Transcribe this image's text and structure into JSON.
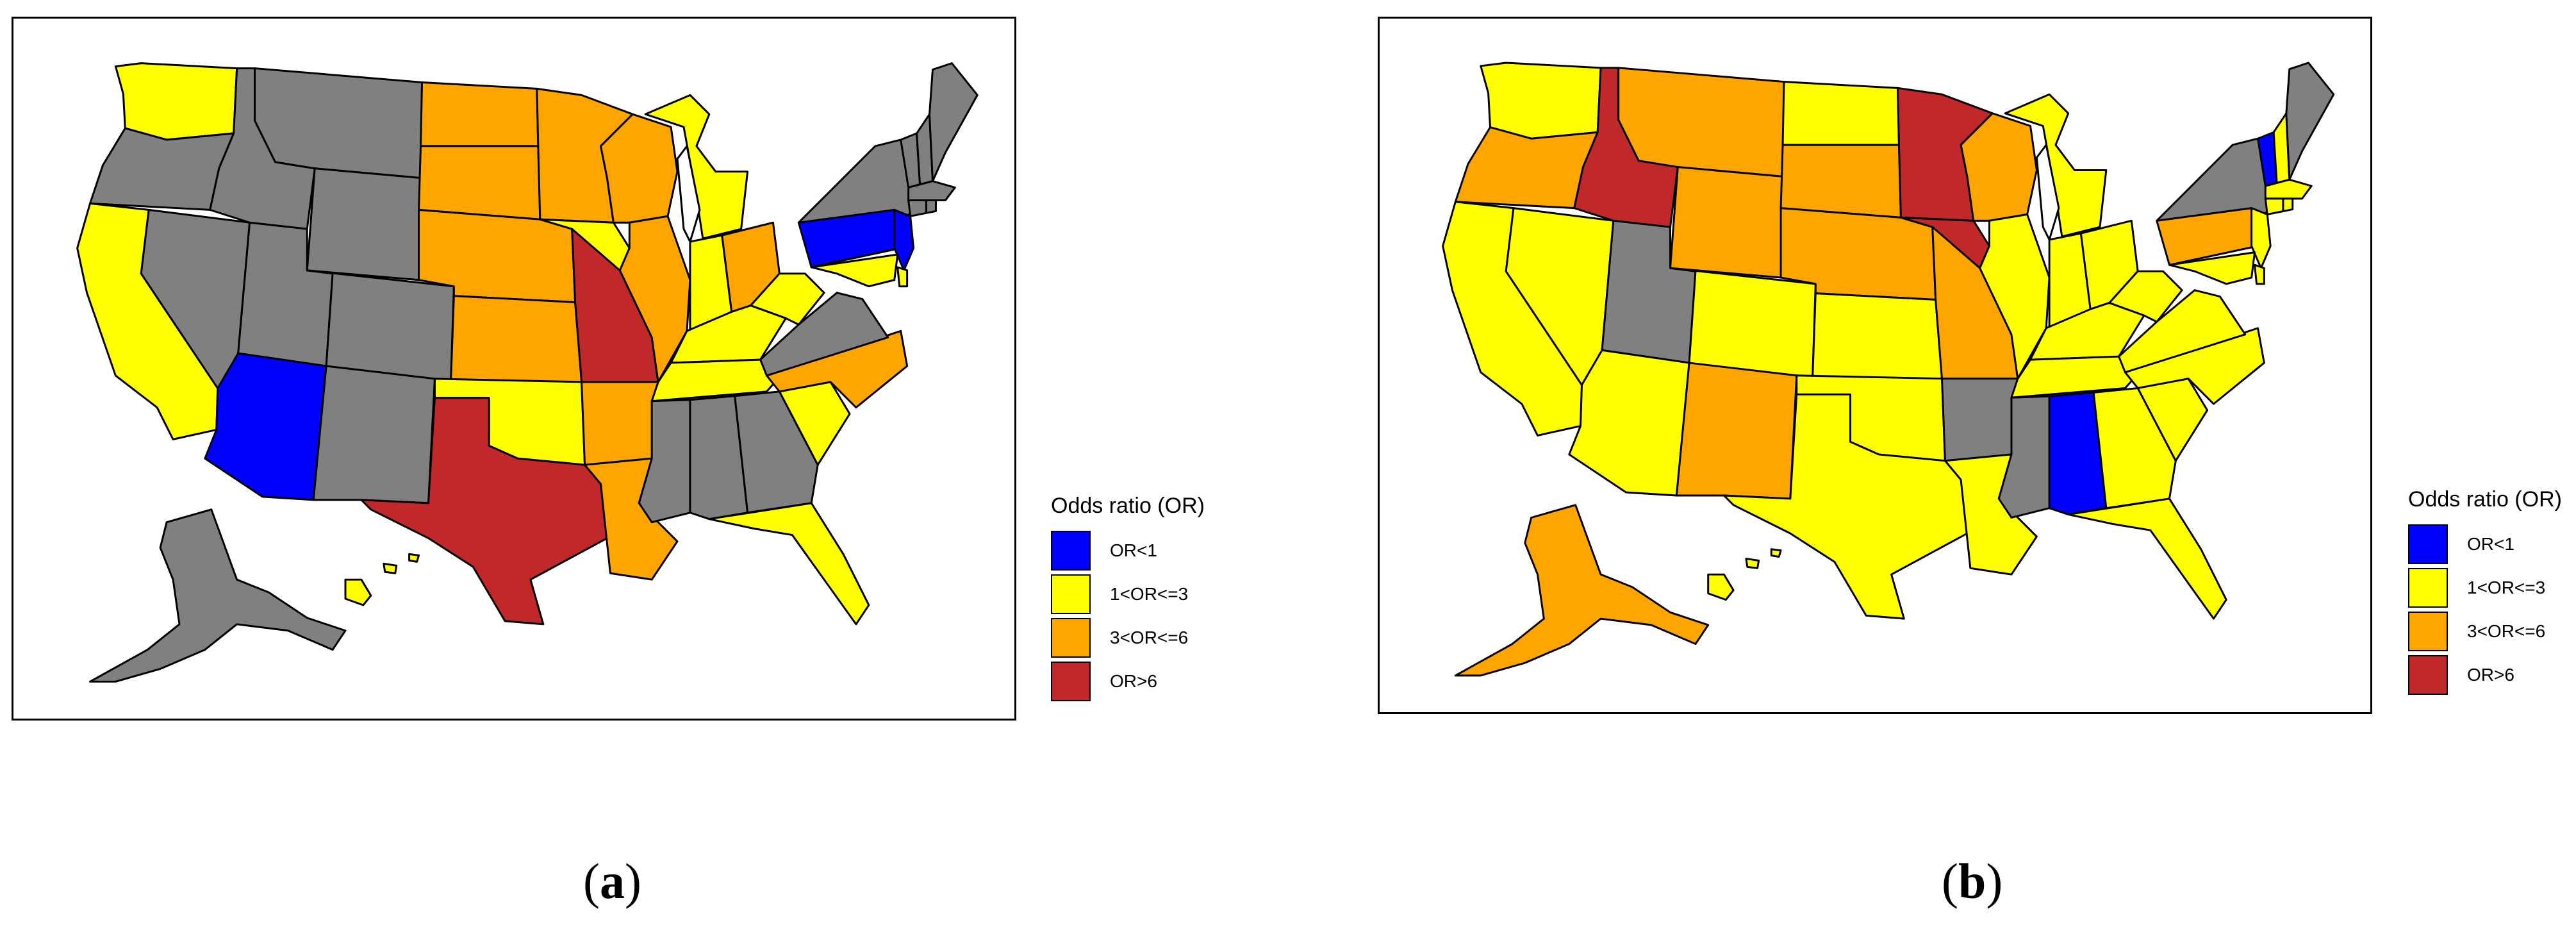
{
  "colors": {
    "OR<1": "#0000ff",
    "1<OR<=3": "#ffff00",
    "3<OR<=6": "#ffa500",
    "OR>6": "#c0282a",
    "no_data": "#808080"
  },
  "panels": [
    {
      "caption_letter": "a",
      "legend": {
        "title": "Odds ratio (OR)",
        "items": [
          {
            "label": "OR<1",
            "color": "#0000ff"
          },
          {
            "label": "1<OR<=3",
            "color": "#ffff00"
          },
          {
            "label": "3<OR<=6",
            "color": "#ffa500"
          },
          {
            "label": "OR>6",
            "color": "#c0282a"
          }
        ]
      },
      "state_categories": {
        "WA": "1<OR<=3",
        "OR": "no_data",
        "CA": "1<OR<=3",
        "NV": "no_data",
        "ID": "no_data",
        "MT": "no_data",
        "WY": "no_data",
        "UT": "no_data",
        "AZ": "OR<1",
        "CO": "no_data",
        "NM": "no_data",
        "ND": "3<OR<=6",
        "SD": "3<OR<=6",
        "NE": "3<OR<=6",
        "KS": "3<OR<=6",
        "OK": "1<OR<=3",
        "TX": "OR>6",
        "MN": "3<OR<=6",
        "IA": "1<OR<=3",
        "MO": "OR>6",
        "AR": "3<OR<=6",
        "LA": "3<OR<=6",
        "WI": "3<OR<=6",
        "IL": "3<OR<=6",
        "MI": "1<OR<=3",
        "IN": "1<OR<=3",
        "OH": "3<OR<=6",
        "KY": "1<OR<=3",
        "TN": "1<OR<=3",
        "MS": "no_data",
        "AL": "no_data",
        "GA": "no_data",
        "FL": "1<OR<=3",
        "SC": "1<OR<=3",
        "NC": "3<OR<=6",
        "VA": "no_data",
        "WV": "1<OR<=3",
        "PA": "OR<1",
        "NY": "no_data",
        "NJ": "OR<1",
        "ME": "no_data",
        "VT": "no_data",
        "NH": "no_data",
        "MA": "no_data",
        "CT": "no_data",
        "RI": "no_data",
        "DE": "1<OR<=3",
        "MD": "1<OR<=3",
        "AK": "no_data",
        "HI": "1<OR<=3"
      }
    },
    {
      "caption_letter": "b",
      "legend": {
        "title": "Odds ratio (OR)",
        "items": [
          {
            "label": "OR<1",
            "color": "#0000ff"
          },
          {
            "label": "1<OR<=3",
            "color": "#ffff00"
          },
          {
            "label": "3<OR<=6",
            "color": "#ffa500"
          },
          {
            "label": "OR>6",
            "color": "#c0282a"
          }
        ]
      },
      "state_categories": {
        "WA": "1<OR<=3",
        "OR": "3<OR<=6",
        "CA": "1<OR<=3",
        "NV": "1<OR<=3",
        "ID": "OR>6",
        "MT": "3<OR<=6",
        "WY": "3<OR<=6",
        "UT": "no_data",
        "AZ": "1<OR<=3",
        "CO": "1<OR<=3",
        "NM": "3<OR<=6",
        "ND": "1<OR<=3",
        "SD": "3<OR<=6",
        "NE": "3<OR<=6",
        "KS": "1<OR<=3",
        "OK": "1<OR<=3",
        "TX": "1<OR<=3",
        "MN": "OR>6",
        "IA": "OR>6",
        "MO": "3<OR<=6",
        "AR": "no_data",
        "LA": "1<OR<=3",
        "WI": "3<OR<=6",
        "IL": "1<OR<=3",
        "MI": "1<OR<=3",
        "IN": "1<OR<=3",
        "OH": "1<OR<=3",
        "KY": "1<OR<=3",
        "TN": "1<OR<=3",
        "MS": "no_data",
        "AL": "OR<1",
        "GA": "1<OR<=3",
        "FL": "1<OR<=3",
        "SC": "1<OR<=3",
        "NC": "1<OR<=3",
        "VA": "1<OR<=3",
        "WV": "1<OR<=3",
        "PA": "3<OR<=6",
        "NY": "no_data",
        "NJ": "1<OR<=3",
        "ME": "no_data",
        "VT": "OR<1",
        "NH": "1<OR<=3",
        "MA": "1<OR<=3",
        "CT": "1<OR<=3",
        "RI": "1<OR<=3",
        "DE": "1<OR<=3",
        "MD": "1<OR<=3",
        "AK": "3<OR<=6",
        "HI": "1<OR<=3"
      }
    }
  ]
}
